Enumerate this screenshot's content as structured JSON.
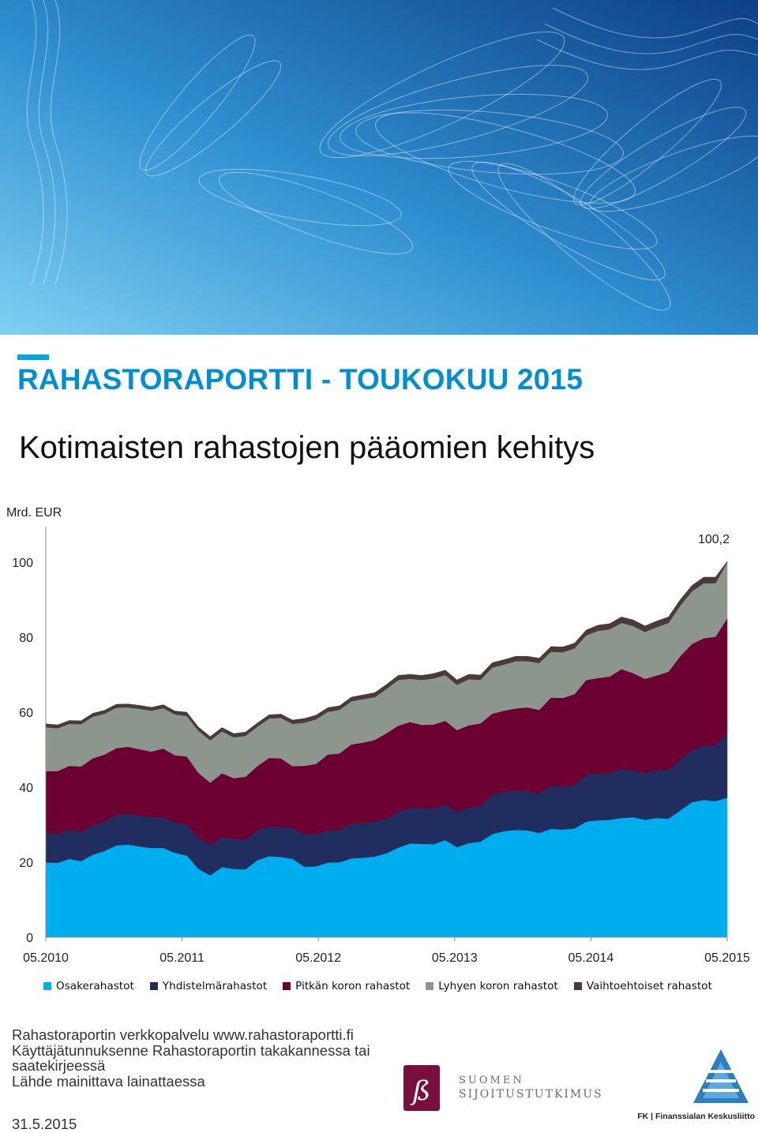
{
  "report": {
    "title": "RAHASTORAPORTTI - TOUKOKUU 2015",
    "chart_title": "Kotimaisten rahastojen pääomien kehitys"
  },
  "chart_data": {
    "type": "area",
    "stacked": true,
    "unit_label": "Mrd. EUR",
    "annotation": "100,2",
    "ylim": [
      0,
      100
    ],
    "yticks": [
      "0",
      "20",
      "40",
      "60",
      "80",
      "100"
    ],
    "xticks": [
      "05.2010",
      "05.2011",
      "05.2012",
      "05.2013",
      "05.2014",
      "05.2015"
    ],
    "grid": false,
    "legend_position": "bottom",
    "x_start": "05.2010",
    "x_end": "05.2015",
    "series": [
      {
        "name": "Osakerahastot",
        "color": "#00aeef",
        "values": [
          20,
          19.8,
          20.9,
          20.3,
          22,
          23,
          24.5,
          24.7,
          24.2,
          23.8,
          23.8,
          22.5,
          21.8,
          18.2,
          16.5,
          18.7,
          18.2,
          18.1,
          20.5,
          21.6,
          21.4,
          20.9,
          18.8,
          18.9,
          19.9,
          20,
          21,
          21.2,
          21.5,
          22.4,
          23.9,
          25,
          24.9,
          24.8,
          25.9,
          24,
          25.1,
          25.5,
          27.5,
          28.3,
          28.6,
          28.5,
          27.8,
          28.9,
          28.7,
          29,
          30.8,
          31.2,
          31.3,
          31.8,
          32,
          31.3,
          31.8,
          31.6,
          33.8,
          36,
          36.6,
          36.3,
          37.2
        ]
      },
      {
        "name": "Yhdistelmärahastot",
        "color": "#1f2d5f",
        "values": [
          7.8,
          7.8,
          7.8,
          7.8,
          7.8,
          7.8,
          8.2,
          8.2,
          8.2,
          8.2,
          8.2,
          8.2,
          8.2,
          8.2,
          8.2,
          8,
          8,
          8,
          8,
          8,
          8,
          8.3,
          8.6,
          8.6,
          8.6,
          8.6,
          9.3,
          9.3,
          9.3,
          9.3,
          9.5,
          9.5,
          9.5,
          9.5,
          9.5,
          9.5,
          9.5,
          9.5,
          10.5,
          10.5,
          10.5,
          10.5,
          10.5,
          11.5,
          11.5,
          11.5,
          12.5,
          12.5,
          12.5,
          13,
          12.5,
          12.5,
          12.7,
          13,
          13.5,
          14,
          14.5,
          14.8,
          17.3
        ]
      },
      {
        "name": "Pitkän koron rahastot",
        "color": "#6d0033",
        "values": [
          16.5,
          16.7,
          17,
          17.4,
          17.9,
          17.9,
          17.7,
          17.9,
          17.7,
          17.5,
          18.3,
          17.8,
          18.2,
          17.4,
          16.5,
          17,
          16.2,
          16.7,
          17.1,
          18.2,
          18.3,
          16.4,
          18.3,
          18.7,
          20.2,
          20.4,
          21.1,
          21.4,
          21.8,
          22.7,
          23,
          22.9,
          22.2,
          22.4,
          22.3,
          21.7,
          21.9,
          22,
          21.6,
          21.6,
          21.9,
          22.3,
          22.3,
          23.5,
          23.6,
          24.3,
          25.3,
          25.4,
          25.7,
          26.7,
          25.9,
          25.1,
          25.3,
          26.2,
          27.6,
          28.2,
          28.6,
          29,
          30.5
        ]
      },
      {
        "name": "Lyhyen koron rahastot",
        "color": "#8c968c",
        "values": [
          11.7,
          11.4,
          11.2,
          11.3,
          11.1,
          10.9,
          10.8,
          10.5,
          10.8,
          10.9,
          10.8,
          10.9,
          10.8,
          11.2,
          11.3,
          11.2,
          10.9,
          10.9,
          10.5,
          10.5,
          10.8,
          11.3,
          11.5,
          11.9,
          11.4,
          11.6,
          11.5,
          11.6,
          11.4,
          11.8,
          12.2,
          11.5,
          12,
          12.3,
          12.2,
          12.1,
          12.3,
          11.6,
          12.3,
          12.3,
          12.6,
          12.3,
          12.5,
          12.2,
          12.2,
          12.2,
          11.9,
          12.6,
          12.6,
          12.3,
          12.6,
          12.5,
          12.9,
          13,
          13.5,
          14,
          14.7,
          14.3,
          14.9
        ]
      },
      {
        "name": "Vaihtoehtoiset rahastot",
        "color": "#4a3a3a",
        "values": [
          0.9,
          0.9,
          0.9,
          0.9,
          0.9,
          0.9,
          0.9,
          0.9,
          0.9,
          0.9,
          0.9,
          0.9,
          1,
          1,
          1,
          1,
          1,
          1,
          1,
          1,
          1,
          1,
          1.1,
          1.1,
          1.1,
          1.1,
          1.1,
          1.1,
          1.2,
          1.2,
          1.2,
          1.2,
          1.2,
          1.3,
          1.3,
          1.3,
          1.3,
          1.3,
          1.3,
          1.3,
          1.3,
          1.3,
          1.3,
          1.4,
          1.4,
          1.4,
          1.4,
          1.5,
          1.5,
          1.6,
          1.6,
          1.6,
          1.6,
          1.6,
          1.6,
          1.6,
          1.6,
          1.6,
          0.3
        ]
      }
    ]
  },
  "footer": {
    "lines": [
      "Rahastoraportin verkkopalvelu www.rahastoraportti.fi",
      "Käyttäjätunnuksenne Rahastoraportin takakannessa tai",
      "saatekirjeessä",
      "Lähde mainittava lainattaessa"
    ],
    "date": "31.5.2015"
  },
  "logos": {
    "sijoitus_line1": "SUOMEN",
    "sijoitus_line2": "SIJOITUSTUTKIMUS",
    "fk_text": "FK | Finanssialan Keskusliitto"
  }
}
